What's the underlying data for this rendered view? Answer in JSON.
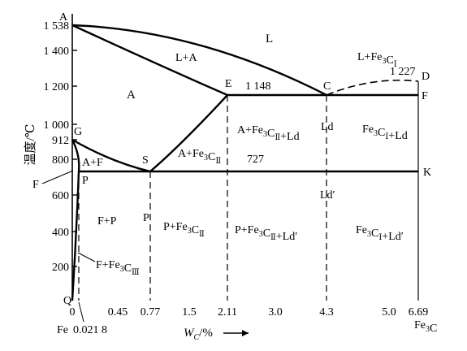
{
  "chart_data": {
    "type": "phase-diagram",
    "title": "",
    "xlabel": "W_C/%",
    "ylabel": "温度/℃",
    "x_range": [
      0,
      6.69
    ],
    "y_range": [
      0,
      1600
    ],
    "x_ticks": [
      {
        "value": 0,
        "label": "0"
      },
      {
        "value": 0.45,
        "label": "0.45"
      },
      {
        "value": 0.77,
        "label": "0.77"
      },
      {
        "value": 1.5,
        "label": "1.5"
      },
      {
        "value": 2.11,
        "label": "2.11"
      },
      {
        "value": 3.0,
        "label": "3.0"
      },
      {
        "value": 4.3,
        "label": "4.3"
      },
      {
        "value": 5.0,
        "label": "5.0"
      },
      {
        "value": 6.69,
        "label": "6.69"
      }
    ],
    "y_ticks": [
      {
        "value": 200,
        "label": "200"
      },
      {
        "value": 400,
        "label": "400"
      },
      {
        "value": 600,
        "label": "600"
      },
      {
        "value": 800,
        "label": "800"
      },
      {
        "value": 912,
        "label": "912"
      },
      {
        "value": 1000,
        "label": "1 000"
      },
      {
        "value": 1200,
        "label": "1 200"
      },
      {
        "value": 1400,
        "label": "1 400"
      },
      {
        "value": 1538,
        "label": "1 538"
      }
    ],
    "x_end_labels": {
      "left": "Fe",
      "left_sub": "0.021 8",
      "right": "Fe3C"
    },
    "points": [
      {
        "name": "A",
        "x": 0,
        "y": 1538
      },
      {
        "name": "C",
        "x": 4.3,
        "y": 1148
      },
      {
        "name": "D",
        "x": 6.69,
        "y": 1227
      },
      {
        "name": "E",
        "x": 2.11,
        "y": 1148
      },
      {
        "name": "F",
        "x": 6.69,
        "y": 1148
      },
      {
        "name": "G",
        "x": 0,
        "y": 912
      },
      {
        "name": "S",
        "x": 0.77,
        "y": 727
      },
      {
        "name": "P",
        "x": 0.0218,
        "y": 727
      },
      {
        "name": "K",
        "x": 6.69,
        "y": 727
      },
      {
        "name": "Q",
        "x": 0,
        "y": 0
      }
    ],
    "temperature_labels": {
      "eutectic": "1 148",
      "eutectoid": "727",
      "fe3c_melt": "1 227"
    },
    "region_labels": [
      "L",
      "L+A",
      "L+Fe3CⅠ",
      "A",
      "A+F",
      "F",
      "A+Fe3CⅡ",
      "A+Fe3CⅡ+Ld",
      "Ld",
      "Fe3CⅠ+Ld",
      "F+P",
      "P",
      "P+Fe3CⅡ",
      "P+Fe3CⅡ+Ld′",
      "Ld′",
      "Fe3CⅠ+Ld′",
      "F+Fe3CⅢ"
    ],
    "arrow_label": "→"
  }
}
